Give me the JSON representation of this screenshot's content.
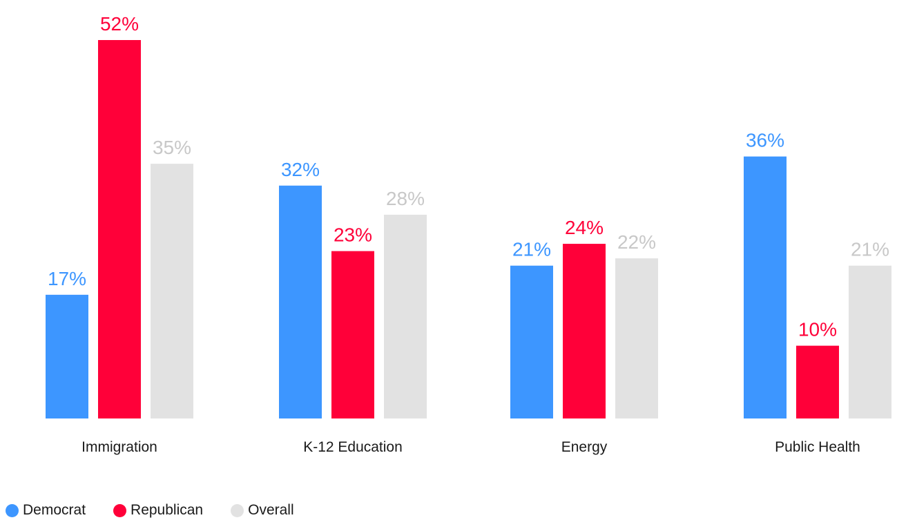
{
  "chart_data": {
    "type": "bar",
    "title": "",
    "xlabel": "",
    "ylabel": "",
    "ylim": [
      0,
      52
    ],
    "grid": false,
    "legend_position": "bottom-left",
    "value_suffix": "%",
    "categories": [
      "Immigration",
      "K-12 Education",
      "Energy",
      "Public Health"
    ],
    "series": [
      {
        "name": "Democrat",
        "color": "#3d96ff",
        "values": [
          17,
          32,
          21,
          36
        ]
      },
      {
        "name": "Republican",
        "color": "#ff0039",
        "values": [
          52,
          23,
          24,
          10
        ]
      },
      {
        "name": "Overall",
        "color": "#e2e2e2",
        "values": [
          35,
          28,
          22,
          21
        ]
      }
    ]
  },
  "colors": {
    "democrat": "#3d96ff",
    "republican": "#ff0039",
    "overall_bar": "#e2e2e2",
    "overall_label": "#c8c8c8"
  }
}
